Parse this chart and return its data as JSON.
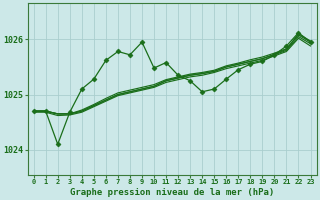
{
  "title": "Graphe pression niveau de la mer (hPa)",
  "bg_color": "#cce8e8",
  "grid_color": "#aacece",
  "line_color": "#1a6e1a",
  "ylim": [
    1023.55,
    1026.65
  ],
  "xlim": [
    -0.5,
    23.5
  ],
  "yticks": [
    1024,
    1025,
    1026
  ],
  "xticks": [
    0,
    1,
    2,
    3,
    4,
    5,
    6,
    7,
    8,
    9,
    10,
    11,
    12,
    13,
    14,
    15,
    16,
    17,
    18,
    19,
    20,
    21,
    22,
    23
  ],
  "straight_lines": [
    [
      1024.7,
      1024.7,
      1024.65,
      1024.65,
      1024.7,
      1024.8,
      1024.9,
      1025.0,
      1025.05,
      1025.1,
      1025.15,
      1025.25,
      1025.3,
      1025.35,
      1025.38,
      1025.42,
      1025.5,
      1025.55,
      1025.6,
      1025.65,
      1025.72,
      1025.8,
      1026.05,
      1025.92
    ],
    [
      1024.7,
      1024.7,
      1024.65,
      1024.65,
      1024.72,
      1024.82,
      1024.93,
      1025.03,
      1025.08,
      1025.13,
      1025.18,
      1025.27,
      1025.32,
      1025.37,
      1025.4,
      1025.44,
      1025.52,
      1025.57,
      1025.63,
      1025.68,
      1025.75,
      1025.83,
      1026.08,
      1025.95
    ],
    [
      1024.7,
      1024.7,
      1024.65,
      1024.65,
      1024.7,
      1024.8,
      1024.9,
      1025.0,
      1025.05,
      1025.1,
      1025.15,
      1025.25,
      1025.3,
      1025.35,
      1025.38,
      1025.42,
      1025.5,
      1025.55,
      1025.6,
      1025.65,
      1025.73,
      1025.82,
      1026.1,
      1025.97
    ],
    [
      1024.68,
      1024.68,
      1024.62,
      1024.63,
      1024.68,
      1024.78,
      1024.88,
      1024.98,
      1025.03,
      1025.08,
      1025.13,
      1025.22,
      1025.27,
      1025.32,
      1025.35,
      1025.4,
      1025.47,
      1025.52,
      1025.57,
      1025.62,
      1025.7,
      1025.78,
      1026.02,
      1025.88
    ]
  ],
  "volatile_line_x": [
    0,
    1,
    2,
    3,
    4,
    5,
    6,
    7,
    8,
    9,
    10,
    11,
    12,
    13,
    14,
    15,
    16,
    17,
    18,
    19,
    20,
    21,
    22,
    23
  ],
  "volatile_line_y": [
    1024.7,
    1024.7,
    1024.1,
    1024.68,
    1025.1,
    1025.28,
    1025.62,
    1025.78,
    1025.72,
    1025.95,
    1025.48,
    1025.58,
    1025.35,
    1025.25,
    1025.05,
    1025.1,
    1025.28,
    1025.45,
    1025.55,
    1025.6,
    1025.72,
    1025.88,
    1026.12,
    1025.95
  ]
}
